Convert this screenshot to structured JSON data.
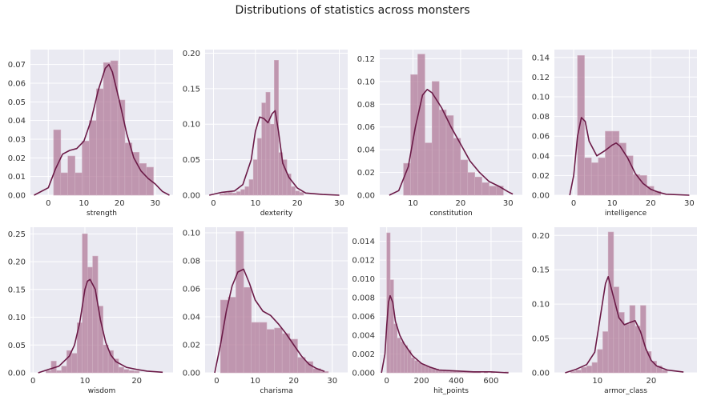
{
  "figure": {
    "title": "Distributions of statistics across monsters"
  },
  "colors": {
    "plot_bg": "#eaeaf2",
    "grid": "#ffffff",
    "bar": "#b07a98",
    "bar_edge": "#cfb0c2",
    "kde": "#6b1a47"
  },
  "chart_data": [
    {
      "type": "bar",
      "xlabel": "strength",
      "xlim": [
        -5,
        35
      ],
      "ylim": [
        0,
        0.078
      ],
      "xticks": [
        0,
        10,
        20,
        30
      ],
      "yticks": [
        0.0,
        0.01,
        0.02,
        0.03,
        0.04,
        0.05,
        0.06,
        0.07
      ],
      "ytick_labels": [
        "0.00",
        "0.01",
        "0.02",
        "0.03",
        "0.04",
        "0.05",
        "0.06",
        "0.07"
      ],
      "bin_edges": [
        1.5,
        3.5,
        5.5,
        7.5,
        9.5,
        11.5,
        13.5,
        15.5,
        17.5,
        19.5,
        21.5,
        23.5,
        25.5,
        27.5,
        29.5
      ],
      "values": [
        0.035,
        0.012,
        0.021,
        0.012,
        0.029,
        0.04,
        0.057,
        0.071,
        0.072,
        0.051,
        0.028,
        0.023,
        0.017,
        0.015
      ],
      "kde": [
        [
          -4,
          0.0
        ],
        [
          0,
          0.004
        ],
        [
          2,
          0.014
        ],
        [
          4,
          0.022
        ],
        [
          6,
          0.024
        ],
        [
          8,
          0.025
        ],
        [
          10,
          0.029
        ],
        [
          12,
          0.04
        ],
        [
          14,
          0.056
        ],
        [
          16,
          0.068
        ],
        [
          17,
          0.07
        ],
        [
          18,
          0.066
        ],
        [
          20,
          0.05
        ],
        [
          22,
          0.033
        ],
        [
          24,
          0.02
        ],
        [
          26,
          0.013
        ],
        [
          28,
          0.009
        ],
        [
          30,
          0.006
        ],
        [
          32,
          0.002
        ],
        [
          34,
          0.0
        ]
      ]
    },
    {
      "type": "bar",
      "xlabel": "dexterity",
      "xlim": [
        -2,
        32
      ],
      "ylim": [
        0,
        0.205
      ],
      "xticks": [
        0,
        10,
        20,
        30
      ],
      "yticks": [
        0.0,
        0.05,
        0.1,
        0.15,
        0.2
      ],
      "ytick_labels": [
        "0.00",
        "0.05",
        "0.10",
        "0.15",
        "0.20"
      ],
      "bin_edges": [
        1.5,
        2.5,
        3.5,
        4.5,
        5.5,
        6.5,
        7.5,
        8.5,
        9.5,
        10.5,
        11.5,
        12.5,
        13.5,
        14.5,
        15.5,
        16.5,
        17.5,
        18.5,
        19.5,
        20.5,
        21.5
      ],
      "values": [
        0.002,
        0.003,
        0.004,
        0.003,
        0.005,
        0.008,
        0.012,
        0.022,
        0.05,
        0.08,
        0.13,
        0.145,
        0.1,
        0.19,
        0.06,
        0.05,
        0.03,
        0.012,
        0.006,
        0.004
      ],
      "kde": [
        [
          -1,
          0.0
        ],
        [
          2,
          0.004
        ],
        [
          5,
          0.006
        ],
        [
          7,
          0.015
        ],
        [
          9,
          0.05
        ],
        [
          10,
          0.09
        ],
        [
          11,
          0.11
        ],
        [
          12,
          0.108
        ],
        [
          13,
          0.102
        ],
        [
          14,
          0.115
        ],
        [
          14.7,
          0.119
        ],
        [
          15.5,
          0.09
        ],
        [
          16.5,
          0.045
        ],
        [
          18,
          0.025
        ],
        [
          20,
          0.01
        ],
        [
          22,
          0.003
        ],
        [
          26,
          0.001
        ],
        [
          30,
          0.0
        ]
      ]
    },
    {
      "type": "bar",
      "xlabel": "constitution",
      "xlim": [
        3,
        33
      ],
      "ylim": [
        0,
        0.128
      ],
      "xticks": [
        10,
        20,
        30
      ],
      "yticks": [
        0.0,
        0.02,
        0.04,
        0.06,
        0.08,
        0.1,
        0.12
      ],
      "ytick_labels": [
        "0.00",
        "0.02",
        "0.04",
        "0.06",
        "0.08",
        "0.10",
        "0.12"
      ],
      "bin_edges": [
        8.0,
        9.5,
        11.0,
        12.5,
        14.0,
        15.5,
        17.0,
        18.5,
        20.0,
        21.5,
        23.0,
        24.5,
        26.0,
        27.5,
        29.0
      ],
      "values": [
        0.028,
        0.106,
        0.124,
        0.046,
        0.1,
        0.075,
        0.07,
        0.05,
        0.031,
        0.02,
        0.016,
        0.011,
        0.008,
        0.008
      ],
      "kde": [
        [
          5,
          0.0
        ],
        [
          7,
          0.004
        ],
        [
          9,
          0.025
        ],
        [
          10.5,
          0.06
        ],
        [
          12,
          0.088
        ],
        [
          13,
          0.093
        ],
        [
          14,
          0.09
        ],
        [
          16,
          0.077
        ],
        [
          18,
          0.06
        ],
        [
          20,
          0.045
        ],
        [
          22,
          0.03
        ],
        [
          24,
          0.02
        ],
        [
          26,
          0.012
        ],
        [
          28,
          0.008
        ],
        [
          30,
          0.003
        ],
        [
          31,
          0.001
        ]
      ]
    },
    {
      "type": "bar",
      "xlabel": "intelligence",
      "xlim": [
        -5,
        32
      ],
      "ylim": [
        0,
        0.148
      ],
      "xticks": [
        0,
        10,
        20,
        30
      ],
      "yticks": [
        0.0,
        0.02,
        0.04,
        0.06,
        0.08,
        0.1,
        0.12,
        0.14
      ],
      "ytick_labels": [
        "0.00",
        "0.02",
        "0.04",
        "0.06",
        "0.08",
        "0.10",
        "0.12",
        "0.14"
      ],
      "bin_edges": [
        1.0,
        2.8,
        4.6,
        6.4,
        8.2,
        10.0,
        11.8,
        13.6,
        15.4,
        17.2,
        19.0,
        20.8,
        22.6
      ],
      "values": [
        0.142,
        0.038,
        0.033,
        0.038,
        0.065,
        0.065,
        0.053,
        0.04,
        0.021,
        0.02,
        0.009,
        0.004
      ],
      "kde": [
        [
          -1,
          0.0
        ],
        [
          0,
          0.02
        ],
        [
          1,
          0.06
        ],
        [
          2,
          0.079
        ],
        [
          3,
          0.075
        ],
        [
          4,
          0.055
        ],
        [
          6,
          0.04
        ],
        [
          8,
          0.045
        ],
        [
          10,
          0.051
        ],
        [
          11,
          0.053
        ],
        [
          12,
          0.05
        ],
        [
          14,
          0.038
        ],
        [
          16,
          0.022
        ],
        [
          18,
          0.012
        ],
        [
          20,
          0.006
        ],
        [
          22,
          0.003
        ],
        [
          24,
          0.001
        ],
        [
          30,
          0.0
        ]
      ]
    },
    {
      "type": "bar",
      "xlabel": "wisdom",
      "xlim": [
        -0.5,
        27
      ],
      "ylim": [
        0,
        0.262
      ],
      "xticks": [
        0,
        10,
        20
      ],
      "yticks": [
        0.0,
        0.05,
        0.1,
        0.15,
        0.2,
        0.25
      ],
      "ytick_labels": [
        "0.00",
        "0.05",
        "0.10",
        "0.15",
        "0.20",
        "0.25"
      ],
      "bin_edges": [
        2.5,
        3.5,
        4.5,
        5.5,
        6.5,
        7.5,
        8.5,
        9.5,
        10.5,
        11.5,
        12.5,
        13.5,
        14.5,
        15.5,
        16.5,
        17.5,
        18.5,
        19.5,
        20.5
      ],
      "values": [
        0.004,
        0.021,
        0.004,
        0.012,
        0.04,
        0.035,
        0.09,
        0.25,
        0.19,
        0.21,
        0.12,
        0.05,
        0.04,
        0.025,
        0.01,
        0.006,
        0.004,
        0.003
      ],
      "kde": [
        [
          1,
          0.0
        ],
        [
          3,
          0.006
        ],
        [
          5,
          0.012
        ],
        [
          7,
          0.03
        ],
        [
          8,
          0.05
        ],
        [
          9,
          0.09
        ],
        [
          10,
          0.15
        ],
        [
          10.5,
          0.165
        ],
        [
          11,
          0.168
        ],
        [
          12,
          0.15
        ],
        [
          13,
          0.095
        ],
        [
          14,
          0.055
        ],
        [
          15,
          0.032
        ],
        [
          16,
          0.02
        ],
        [
          18,
          0.01
        ],
        [
          20,
          0.006
        ],
        [
          22,
          0.003
        ],
        [
          25,
          0.001
        ]
      ]
    },
    {
      "type": "bar",
      "xlabel": "charisma",
      "xlim": [
        -3,
        34
      ],
      "ylim": [
        0,
        0.104
      ],
      "xticks": [
        0,
        10,
        20,
        30
      ],
      "yticks": [
        0.0,
        0.02,
        0.04,
        0.06,
        0.08,
        0.1
      ],
      "ytick_labels": [
        "0.00",
        "0.02",
        "0.04",
        "0.06",
        "0.08",
        "0.10"
      ],
      "bin_edges": [
        1.0,
        3.0,
        5.0,
        7.0,
        9.0,
        11.0,
        13.0,
        15.0,
        17.0,
        19.0,
        21.0,
        23.0,
        25.0,
        27.0,
        29.0
      ],
      "values": [
        0.052,
        0.054,
        0.101,
        0.061,
        0.036,
        0.036,
        0.031,
        0.032,
        0.028,
        0.024,
        0.011,
        0.008,
        0.003,
        0.001
      ],
      "kde": [
        [
          -0.5,
          0.0
        ],
        [
          1,
          0.02
        ],
        [
          2.5,
          0.044
        ],
        [
          4,
          0.062
        ],
        [
          5.5,
          0.072
        ],
        [
          7,
          0.074
        ],
        [
          8.5,
          0.064
        ],
        [
          10,
          0.052
        ],
        [
          12,
          0.044
        ],
        [
          14,
          0.041
        ],
        [
          16,
          0.035
        ],
        [
          18,
          0.028
        ],
        [
          20,
          0.02
        ],
        [
          22,
          0.012
        ],
        [
          24,
          0.006
        ],
        [
          26,
          0.003
        ],
        [
          28,
          0.001
        ]
      ]
    },
    {
      "type": "bar",
      "xlabel": "hit_points",
      "xlim": [
        -40,
        780
      ],
      "ylim": [
        0,
        0.0155
      ],
      "xticks": [
        0,
        200,
        400,
        600
      ],
      "yticks": [
        0.0,
        0.002,
        0.004,
        0.006,
        0.008,
        0.01,
        0.012,
        0.014
      ],
      "ytick_labels": [
        "0.000",
        "0.002",
        "0.004",
        "0.006",
        "0.008",
        "0.010",
        "0.012",
        "0.014"
      ],
      "bin_edges": [
        0,
        20,
        40,
        60,
        80,
        100,
        120,
        140,
        160,
        180,
        200,
        220,
        240,
        260,
        280,
        300,
        320,
        340,
        360,
        380,
        400,
        420,
        440,
        460,
        480,
        500,
        520,
        540,
        560,
        580,
        600,
        620,
        640,
        660,
        680,
        700
      ],
      "values": [
        0.0149,
        0.0099,
        0.0052,
        0.0037,
        0.0033,
        0.0029,
        0.0024,
        0.0016,
        0.0013,
        0.0011,
        0.0009,
        0.0007,
        0.0006,
        0.0005,
        0.0004,
        0.0003,
        0.0003,
        0.0002,
        0.0002,
        0.0002,
        0.0001,
        0.0001,
        0.0001,
        0.0001,
        0.0001,
        0.0001,
        0.0001,
        0.0,
        0.0001,
        0.0,
        0.0001,
        0.0,
        0.0,
        0.0,
        0.0001
      ],
      "kde": [
        [
          -30,
          0.0
        ],
        [
          -10,
          0.002
        ],
        [
          0,
          0.005
        ],
        [
          10,
          0.0075
        ],
        [
          20,
          0.0082
        ],
        [
          35,
          0.0075
        ],
        [
          50,
          0.0055
        ],
        [
          75,
          0.004
        ],
        [
          100,
          0.0031
        ],
        [
          150,
          0.0018
        ],
        [
          200,
          0.001
        ],
        [
          250,
          0.0006
        ],
        [
          300,
          0.0003
        ],
        [
          400,
          0.0002
        ],
        [
          500,
          0.0001
        ],
        [
          600,
          0.0001
        ],
        [
          700,
          0.0
        ]
      ]
    },
    {
      "type": "bar",
      "xlabel": "armor_class",
      "xlim": [
        2,
        28.5
      ],
      "ylim": [
        0,
        0.212
      ],
      "xticks": [
        10,
        20
      ],
      "yticks": [
        0.0,
        0.05,
        0.1,
        0.15,
        0.2
      ],
      "ytick_labels": [
        "0.00",
        "0.05",
        "0.10",
        "0.15",
        "0.20"
      ],
      "bin_edges": [
        5.0,
        6.0,
        7.0,
        8.0,
        9.0,
        10.0,
        11.0,
        12.0,
        13.0,
        14.0,
        15.0,
        16.0,
        17.0,
        18.0,
        19.0,
        20.0,
        21.0,
        22.0,
        23.0
      ],
      "values": [
        0.002,
        0.004,
        0.008,
        0.01,
        0.015,
        0.034,
        0.06,
        0.205,
        0.125,
        0.088,
        0.071,
        0.098,
        0.068,
        0.098,
        0.031,
        0.017,
        0.01,
        0.004
      ],
      "kde": [
        [
          4,
          0.0
        ],
        [
          6,
          0.005
        ],
        [
          8,
          0.012
        ],
        [
          9.5,
          0.03
        ],
        [
          10.5,
          0.08
        ],
        [
          11.5,
          0.13
        ],
        [
          12,
          0.14
        ],
        [
          13,
          0.11
        ],
        [
          14,
          0.08
        ],
        [
          15,
          0.07
        ],
        [
          16,
          0.073
        ],
        [
          17,
          0.076
        ],
        [
          18,
          0.06
        ],
        [
          19,
          0.035
        ],
        [
          20,
          0.018
        ],
        [
          21,
          0.01
        ],
        [
          23,
          0.004
        ],
        [
          26,
          0.001
        ]
      ]
    }
  ]
}
